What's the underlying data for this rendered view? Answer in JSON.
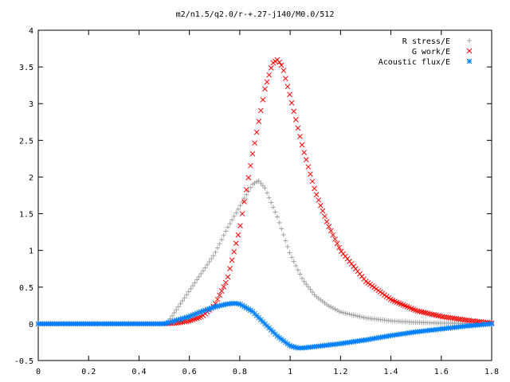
{
  "chart_data": {
    "type": "scatter",
    "title": "m2/n1.5/q2.0/r-+.27-j140/M0.0/512",
    "xlabel": "",
    "ylabel": "",
    "xlim": [
      0,
      1.8
    ],
    "ylim": [
      -0.5,
      4
    ],
    "grid": false,
    "legend_position": "top-right",
    "x_ticks": [
      "0",
      "0.2",
      "0.4",
      "0.6",
      "0.8",
      "1",
      "1.2",
      "1.4",
      "1.6",
      "1.8"
    ],
    "y_ticks": [
      "-0.5",
      "0",
      "0.5",
      "1",
      "1.5",
      "2",
      "2.5",
      "3",
      "3.5",
      "4"
    ],
    "series": [
      {
        "name": "R stress/E",
        "color": "#a0a0a0",
        "marker": "plus",
        "points": [
          [
            0,
            0
          ],
          [
            0.1,
            0
          ],
          [
            0.2,
            0
          ],
          [
            0.3,
            0
          ],
          [
            0.4,
            0
          ],
          [
            0.5,
            0
          ],
          [
            0.52,
            0.05
          ],
          [
            0.55,
            0.2
          ],
          [
            0.6,
            0.45
          ],
          [
            0.65,
            0.7
          ],
          [
            0.7,
            0.95
          ],
          [
            0.75,
            1.3
          ],
          [
            0.8,
            1.6
          ],
          [
            0.85,
            1.9
          ],
          [
            0.875,
            1.95
          ],
          [
            0.9,
            1.85
          ],
          [
            0.95,
            1.45
          ],
          [
            1.0,
            0.95
          ],
          [
            1.05,
            0.6
          ],
          [
            1.1,
            0.38
          ],
          [
            1.15,
            0.25
          ],
          [
            1.2,
            0.16
          ],
          [
            1.3,
            0.08
          ],
          [
            1.4,
            0.04
          ],
          [
            1.5,
            0.02
          ],
          [
            1.6,
            0.01
          ],
          [
            1.7,
            0.005
          ],
          [
            1.8,
            0
          ]
        ]
      },
      {
        "name": "G work/E",
        "color": "#ff0000",
        "marker": "cross",
        "points": [
          [
            0,
            0
          ],
          [
            0.1,
            0
          ],
          [
            0.2,
            0
          ],
          [
            0.3,
            0
          ],
          [
            0.4,
            0
          ],
          [
            0.5,
            0
          ],
          [
            0.55,
            0.01
          ],
          [
            0.6,
            0.04
          ],
          [
            0.65,
            0.1
          ],
          [
            0.7,
            0.25
          ],
          [
            0.75,
            0.6
          ],
          [
            0.8,
            1.3
          ],
          [
            0.85,
            2.3
          ],
          [
            0.9,
            3.2
          ],
          [
            0.93,
            3.55
          ],
          [
            0.95,
            3.6
          ],
          [
            0.97,
            3.5
          ],
          [
            1.0,
            3.1
          ],
          [
            1.05,
            2.4
          ],
          [
            1.1,
            1.8
          ],
          [
            1.15,
            1.35
          ],
          [
            1.2,
            1.0
          ],
          [
            1.3,
            0.58
          ],
          [
            1.4,
            0.33
          ],
          [
            1.5,
            0.18
          ],
          [
            1.6,
            0.1
          ],
          [
            1.7,
            0.05
          ],
          [
            1.8,
            0.01
          ]
        ]
      },
      {
        "name": "Acoustic flux/E",
        "color": "#0080ff",
        "marker": "star",
        "points": [
          [
            0,
            0
          ],
          [
            0.1,
            0
          ],
          [
            0.2,
            0
          ],
          [
            0.3,
            0
          ],
          [
            0.4,
            0
          ],
          [
            0.5,
            0
          ],
          [
            0.55,
            0.05
          ],
          [
            0.6,
            0.1
          ],
          [
            0.65,
            0.17
          ],
          [
            0.7,
            0.23
          ],
          [
            0.75,
            0.27
          ],
          [
            0.78,
            0.28
          ],
          [
            0.8,
            0.27
          ],
          [
            0.85,
            0.17
          ],
          [
            0.9,
            0.0
          ],
          [
            0.95,
            -0.17
          ],
          [
            1.0,
            -0.3
          ],
          [
            1.03,
            -0.33
          ],
          [
            1.05,
            -0.33
          ],
          [
            1.1,
            -0.31
          ],
          [
            1.2,
            -0.27
          ],
          [
            1.3,
            -0.22
          ],
          [
            1.4,
            -0.16
          ],
          [
            1.5,
            -0.11
          ],
          [
            1.6,
            -0.07
          ],
          [
            1.7,
            -0.03
          ],
          [
            1.8,
            0
          ]
        ]
      }
    ]
  }
}
